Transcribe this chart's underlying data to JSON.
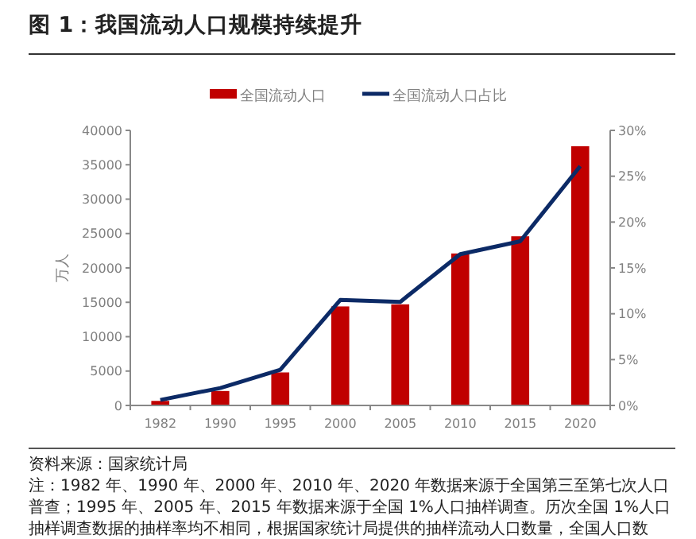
{
  "chart_data": {
    "type": "bar",
    "title": "图 1：我国流动人口规模持续提升",
    "ylabel": "万人",
    "categories": [
      "1982",
      "1990",
      "1995",
      "2000",
      "2005",
      "2010",
      "2015",
      "2020"
    ],
    "series": [
      {
        "name": "全国流动人口",
        "color": "#c00000",
        "values": [
          660,
          2100,
          4800,
          14400,
          14700,
          22100,
          24600,
          37700
        ]
      },
      {
        "name": "全国流动人口占比",
        "type": "line",
        "axis": "y2",
        "color": "#0c2a66",
        "values": [
          0.6,
          1.9,
          3.9,
          11.5,
          11.3,
          16.5,
          17.9,
          26.1
        ]
      }
    ],
    "ylim": [
      0,
      40000
    ],
    "yticks": [
      0,
      5000,
      10000,
      15000,
      20000,
      25000,
      30000,
      35000,
      40000
    ],
    "y2lim": [
      0,
      30
    ],
    "y2ticks": [
      {
        "value": 0,
        "label": "0%"
      },
      {
        "value": 5,
        "label": "5%"
      },
      {
        "value": 10,
        "label": "10%"
      },
      {
        "value": 15,
        "label": "15%"
      },
      {
        "value": 20,
        "label": "20%"
      },
      {
        "value": 25,
        "label": "25%"
      },
      {
        "value": 30,
        "label": "30%"
      }
    ],
    "legend": "top",
    "marker": "none",
    "annotations": [
      "资料来源：国家统计局",
      "注：1982 年、1990 年、2000 年、2010 年、2020 年数据来源于全国第三至第七次人口",
      "普查；1995 年、2005 年、2015 年数据来源于全国 1%人口抽样调查。历次全国 1%人口",
      "抽样调查数据的抽样率均不相同，根据国家统计局提供的抽样流动人口数量，全国人口数"
    ]
  }
}
